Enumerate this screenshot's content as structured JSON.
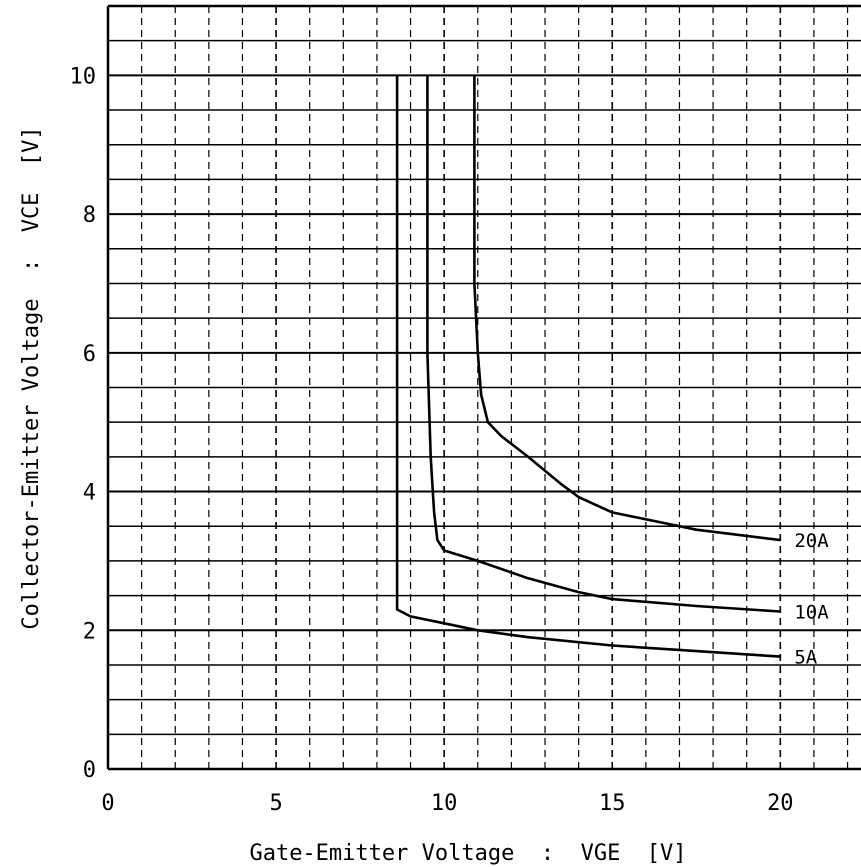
{
  "chart_data": {
    "type": "line",
    "title": "",
    "xlabel": "Gate-Emitter Voltage  :  VGE  [V]",
    "ylabel": "Collector-Emitter Voltage  :  VCE  [V]",
    "xlim": [
      0,
      22.4
    ],
    "ylim": [
      0,
      11
    ],
    "x_ticks": [
      0,
      5,
      10,
      15,
      20
    ],
    "y_ticks": [
      0,
      2,
      4,
      6,
      8,
      10
    ],
    "x_minor_step": 1,
    "y_minor_step": 0.5,
    "grid": true,
    "series": [
      {
        "name": "5A",
        "points": [
          [
            8.6,
            10.0
          ],
          [
            8.6,
            2.3
          ],
          [
            9.0,
            2.2
          ],
          [
            10.0,
            2.1
          ],
          [
            11.0,
            2.0
          ],
          [
            12.5,
            1.9
          ],
          [
            15.0,
            1.78
          ],
          [
            17.5,
            1.7
          ],
          [
            20.0,
            1.62
          ]
        ]
      },
      {
        "name": "10A",
        "points": [
          [
            9.5,
            10.0
          ],
          [
            9.5,
            6.0
          ],
          [
            9.6,
            4.5
          ],
          [
            9.7,
            3.7
          ],
          [
            9.8,
            3.3
          ],
          [
            10.0,
            3.15
          ],
          [
            11.0,
            3.0
          ],
          [
            12.5,
            2.75
          ],
          [
            14.0,
            2.55
          ],
          [
            15.0,
            2.45
          ],
          [
            17.5,
            2.35
          ],
          [
            20.0,
            2.27
          ]
        ]
      },
      {
        "name": "20A",
        "points": [
          [
            10.9,
            10.0
          ],
          [
            10.9,
            7.0
          ],
          [
            11.0,
            6.0
          ],
          [
            11.1,
            5.4
          ],
          [
            11.3,
            5.0
          ],
          [
            11.7,
            4.8
          ],
          [
            12.5,
            4.5
          ],
          [
            13.5,
            4.1
          ],
          [
            14.0,
            3.92
          ],
          [
            15.0,
            3.7
          ],
          [
            17.5,
            3.45
          ],
          [
            20.0,
            3.3
          ]
        ]
      }
    ]
  }
}
